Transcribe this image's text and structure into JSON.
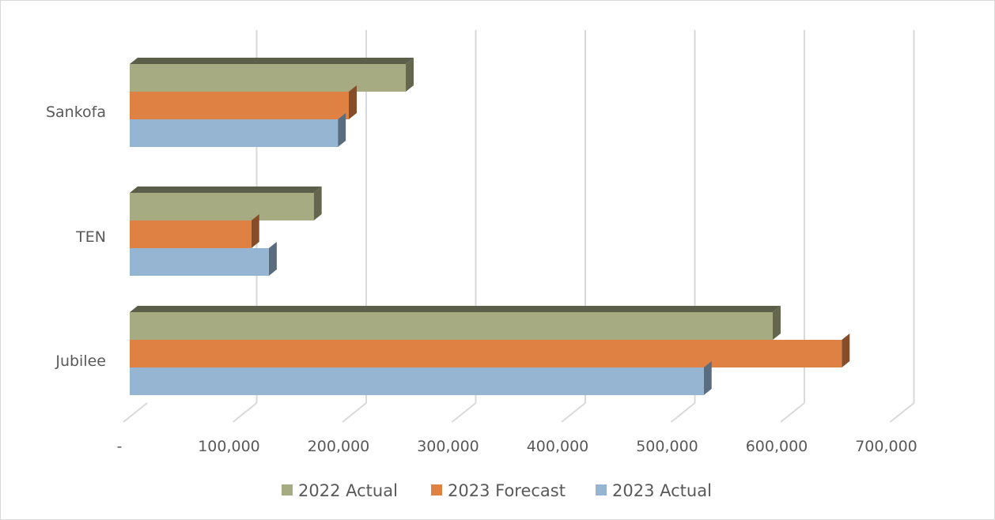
{
  "chart_data": {
    "type": "bar",
    "orientation": "horizontal",
    "style": "3d-clustered",
    "categories": [
      "Sankofa",
      "TEN",
      "Jubilee"
    ],
    "series": [
      {
        "name": "2022 Actual",
        "values": [
          252000,
          168000,
          587000
        ],
        "color": "#a6ab82"
      },
      {
        "name": "2023 Forecast",
        "values": [
          200000,
          111000,
          650000
        ],
        "color": "#df8142"
      },
      {
        "name": "2023 Actual",
        "values": [
          190000,
          127000,
          524000
        ],
        "color": "#95b5d2"
      }
    ],
    "xlim": [
      0,
      700000
    ],
    "x_ticks": [
      {
        "value": 0,
        "label": "-"
      },
      {
        "value": 100000,
        "label": "100,000"
      },
      {
        "value": 200000,
        "label": "200,000"
      },
      {
        "value": 300000,
        "label": "300,000"
      },
      {
        "value": 400000,
        "label": "400,000"
      },
      {
        "value": 500000,
        "label": "500,000"
      },
      {
        "value": 600000,
        "label": "600,000"
      },
      {
        "value": 700000,
        "label": "700,000"
      }
    ],
    "grid": true,
    "legend": "bottom",
    "title": "",
    "xlabel": "",
    "ylabel": ""
  }
}
